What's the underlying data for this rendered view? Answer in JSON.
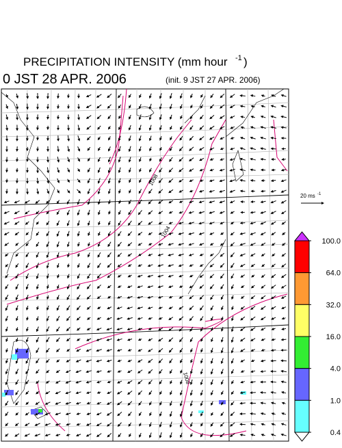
{
  "title": {
    "text": "PRECIPITATION INTENSITY (mm hour",
    "sup": "-1",
    "end": ")"
  },
  "valid_time": "0 JST 28 APR. 2006",
  "init_time": "(init. 9 JST 27 APR. 2006)",
  "vector_legend": {
    "text": "20 ms",
    "sup": "-1"
  },
  "contour_labels": [
    "1008",
    "1004",
    "1008"
  ],
  "colorbar": {
    "levels": [
      {
        "value": 100,
        "label": "100.0"
      },
      {
        "value": 64,
        "label": "64.0"
      },
      {
        "value": 32,
        "label": "32.0"
      },
      {
        "value": 16,
        "label": "16.0"
      },
      {
        "value": 4,
        "label": "4.0"
      },
      {
        "value": 1,
        "label": "1.0"
      },
      {
        "value": 0.4,
        "label": "0.4"
      }
    ],
    "colors": [
      "#ff0000",
      "#ff9933",
      "#ffff66",
      "#33ee33",
      "#6666ff",
      "#66ffff"
    ],
    "over_color": "#cc33ff",
    "under_color": "#ffffff"
  }
}
